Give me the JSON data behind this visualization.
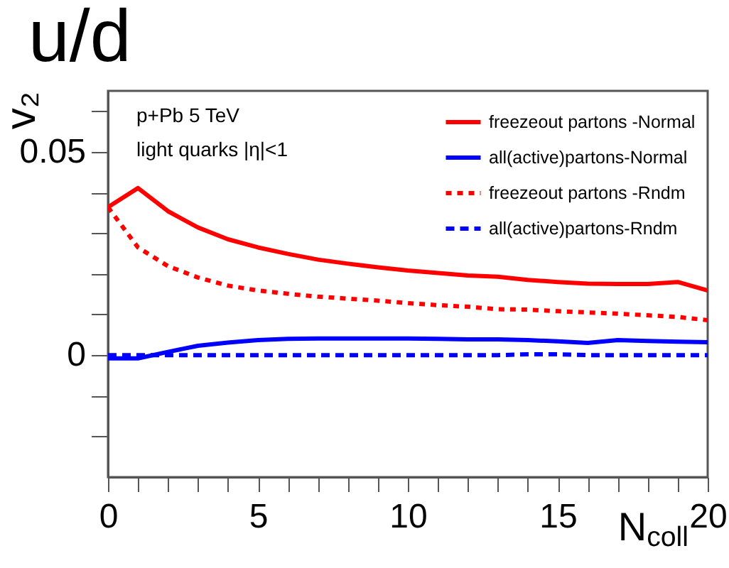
{
  "chart_data": {
    "type": "line",
    "title": "u/d",
    "xlabel": "N$_{coll}$",
    "ylabel": "v₂",
    "annotations": [
      "p+Pb   5 TeV",
      "light quarks  |η|<1"
    ],
    "x": [
      0,
      1,
      2,
      3,
      4,
      5,
      6,
      7,
      8,
      9,
      10,
      11,
      12,
      13,
      14,
      15,
      16,
      17,
      18,
      19,
      20
    ],
    "series": [
      {
        "name": "freezeout partons -Normal",
        "color": "#ff0000",
        "line_style": "solid",
        "values": [
          0.0364,
          0.0411,
          0.0354,
          0.0314,
          0.0285,
          0.0265,
          0.0249,
          0.0235,
          0.0225,
          0.0216,
          0.0208,
          0.0202,
          0.0196,
          0.0193,
          0.0185,
          0.018,
          0.0176,
          0.0175,
          0.0175,
          0.018,
          0.0159
        ]
      },
      {
        "name": "all(active)partons-Normal",
        "color": "#0000ff",
        "line_style": "solid",
        "values": [
          -0.0008,
          -0.0008,
          0.0008,
          0.0023,
          0.0031,
          0.0037,
          0.004,
          0.0041,
          0.0041,
          0.0041,
          0.0041,
          0.004,
          0.0039,
          0.0039,
          0.0037,
          0.0034,
          0.003,
          0.0037,
          0.0035,
          0.0033,
          0.0032
        ]
      },
      {
        "name": "freezeout partons -Rndm",
        "color": "#ff0000",
        "line_style": "dotted",
        "values": [
          0.0364,
          0.0265,
          0.0219,
          0.0191,
          0.0171,
          0.0159,
          0.0151,
          0.0144,
          0.0139,
          0.0134,
          0.0128,
          0.0123,
          0.0119,
          0.0113,
          0.0112,
          0.0108,
          0.0105,
          0.0102,
          0.0098,
          0.0094,
          0.0086
        ]
      },
      {
        "name": "all(active)partons-Rndm",
        "color": "#0000ff",
        "line_style": "dashed",
        "values": [
          0,
          0,
          0,
          0,
          0,
          0,
          0,
          0,
          0,
          0,
          0,
          0,
          0,
          0,
          0.0002,
          0.0002,
          0,
          0,
          0,
          0,
          0
        ]
      }
    ],
    "xlim": [
      0,
      20
    ],
    "xticks": [
      0,
      {
        "value": 1,
        "label": null
      },
      {
        "value": 2,
        "label": null
      },
      {
        "value": 3,
        "label": null
      },
      {
        "value": 4,
        "label": null
      },
      5,
      {
        "value": 6,
        "label": null
      },
      {
        "value": 7,
        "label": null
      },
      {
        "value": 8,
        "label": null
      },
      {
        "value": 9,
        "label": null
      },
      10,
      {
        "value": 11,
        "label": null
      },
      {
        "value": 12,
        "label": null
      },
      {
        "value": 13,
        "label": null
      },
      {
        "value": 14,
        "label": null
      },
      15,
      {
        "value": 16,
        "label": null
      },
      {
        "value": 17,
        "label": null
      },
      {
        "value": 18,
        "label": null
      },
      {
        "value": 19,
        "label": null
      },
      20
    ],
    "ylim": [
      -0.03,
      0.065
    ],
    "yticks": [
      {
        "value": -0.02,
        "label": null
      },
      {
        "value": -0.01,
        "label": null
      },
      0,
      {
        "value": 0.01,
        "label": null
      },
      {
        "value": 0.02,
        "label": null
      },
      {
        "value": 0.03,
        "label": null
      },
      {
        "value": 0.04,
        "label": null
      },
      0.05,
      {
        "value": 0.06,
        "label": null
      }
    ],
    "grid": false,
    "legend": "top right",
    "marker": "none"
  }
}
